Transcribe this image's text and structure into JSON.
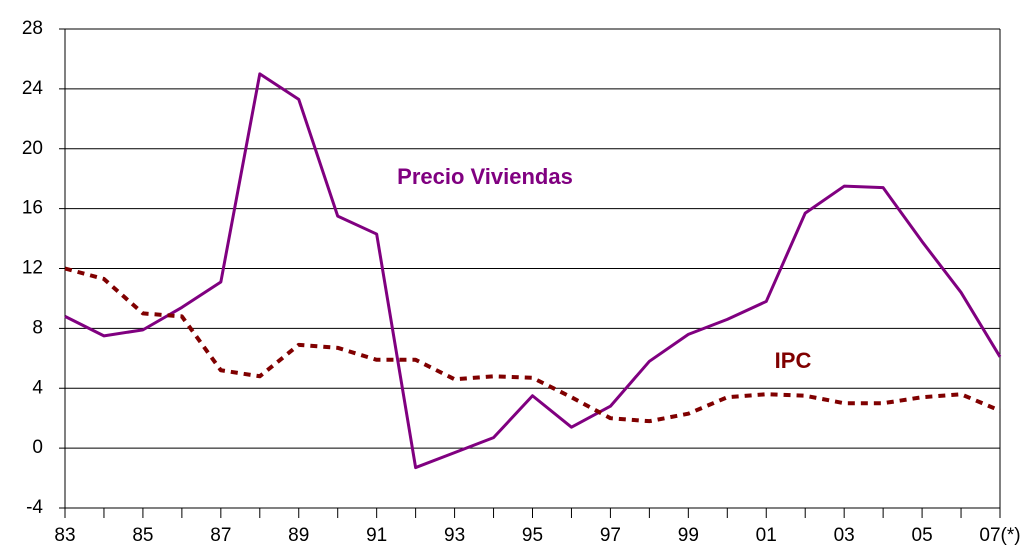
{
  "chart_data": {
    "type": "line",
    "categories": [
      "83",
      null,
      "85",
      null,
      "87",
      null,
      "89",
      null,
      "91",
      null,
      "93",
      null,
      "95",
      null,
      "97",
      null,
      "99",
      null,
      "01",
      null,
      "03",
      null,
      "05",
      null,
      "07(*)"
    ],
    "series": [
      {
        "name": "Precio Viviendas",
        "color": "#800080",
        "dashed": false,
        "values": [
          8.8,
          7.5,
          7.9,
          9.4,
          11.1,
          25.0,
          23.3,
          15.5,
          14.3,
          -1.3,
          -0.3,
          0.7,
          3.5,
          1.4,
          2.8,
          5.8,
          7.6,
          8.6,
          9.8,
          15.7,
          17.5,
          17.4,
          13.8,
          10.4,
          6.1
        ]
      },
      {
        "name": "IPC",
        "color": "#800000",
        "dashed": true,
        "values": [
          12.0,
          11.3,
          9.0,
          8.8,
          5.2,
          4.8,
          6.9,
          6.7,
          5.9,
          5.9,
          4.6,
          4.8,
          4.7,
          3.4,
          2.0,
          1.8,
          2.3,
          3.4,
          3.6,
          3.5,
          3.0,
          3.0,
          3.4,
          3.6,
          2.5
        ]
      }
    ],
    "ylim": [
      -4,
      28
    ],
    "yticks": [
      -4,
      0,
      4,
      8,
      12,
      16,
      20,
      24,
      28
    ],
    "grid": true
  }
}
